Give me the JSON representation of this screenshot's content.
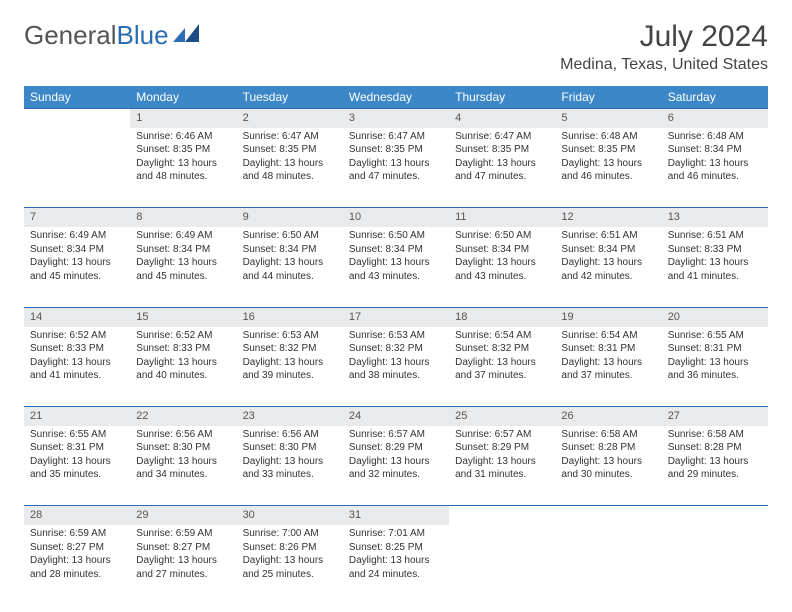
{
  "logo": {
    "part1": "General",
    "part2": "Blue"
  },
  "title": "July 2024",
  "location": "Medina, Texas, United States",
  "colors": {
    "header_bg": "#3b87c8",
    "header_text": "#ffffff",
    "daynum_bg": "#e9eaec",
    "rule": "#2a6db5",
    "text": "#333333",
    "logo_gray": "#555555",
    "logo_blue": "#2a6db5",
    "page_bg": "#ffffff"
  },
  "typography": {
    "title_fontsize": 30,
    "location_fontsize": 16,
    "dayheader_fontsize": 12,
    "daynum_fontsize": 11,
    "body_fontsize": 10
  },
  "day_headers": [
    "Sunday",
    "Monday",
    "Tuesday",
    "Wednesday",
    "Thursday",
    "Friday",
    "Saturday"
  ],
  "weeks": [
    {
      "days": [
        {
          "num": "",
          "lines": []
        },
        {
          "num": "1",
          "lines": [
            "Sunrise: 6:46 AM",
            "Sunset: 8:35 PM",
            "Daylight: 13 hours",
            "and 48 minutes."
          ]
        },
        {
          "num": "2",
          "lines": [
            "Sunrise: 6:47 AM",
            "Sunset: 8:35 PM",
            "Daylight: 13 hours",
            "and 48 minutes."
          ]
        },
        {
          "num": "3",
          "lines": [
            "Sunrise: 6:47 AM",
            "Sunset: 8:35 PM",
            "Daylight: 13 hours",
            "and 47 minutes."
          ]
        },
        {
          "num": "4",
          "lines": [
            "Sunrise: 6:47 AM",
            "Sunset: 8:35 PM",
            "Daylight: 13 hours",
            "and 47 minutes."
          ]
        },
        {
          "num": "5",
          "lines": [
            "Sunrise: 6:48 AM",
            "Sunset: 8:35 PM",
            "Daylight: 13 hours",
            "and 46 minutes."
          ]
        },
        {
          "num": "6",
          "lines": [
            "Sunrise: 6:48 AM",
            "Sunset: 8:34 PM",
            "Daylight: 13 hours",
            "and 46 minutes."
          ]
        }
      ]
    },
    {
      "days": [
        {
          "num": "7",
          "lines": [
            "Sunrise: 6:49 AM",
            "Sunset: 8:34 PM",
            "Daylight: 13 hours",
            "and 45 minutes."
          ]
        },
        {
          "num": "8",
          "lines": [
            "Sunrise: 6:49 AM",
            "Sunset: 8:34 PM",
            "Daylight: 13 hours",
            "and 45 minutes."
          ]
        },
        {
          "num": "9",
          "lines": [
            "Sunrise: 6:50 AM",
            "Sunset: 8:34 PM",
            "Daylight: 13 hours",
            "and 44 minutes."
          ]
        },
        {
          "num": "10",
          "lines": [
            "Sunrise: 6:50 AM",
            "Sunset: 8:34 PM",
            "Daylight: 13 hours",
            "and 43 minutes."
          ]
        },
        {
          "num": "11",
          "lines": [
            "Sunrise: 6:50 AM",
            "Sunset: 8:34 PM",
            "Daylight: 13 hours",
            "and 43 minutes."
          ]
        },
        {
          "num": "12",
          "lines": [
            "Sunrise: 6:51 AM",
            "Sunset: 8:34 PM",
            "Daylight: 13 hours",
            "and 42 minutes."
          ]
        },
        {
          "num": "13",
          "lines": [
            "Sunrise: 6:51 AM",
            "Sunset: 8:33 PM",
            "Daylight: 13 hours",
            "and 41 minutes."
          ]
        }
      ]
    },
    {
      "days": [
        {
          "num": "14",
          "lines": [
            "Sunrise: 6:52 AM",
            "Sunset: 8:33 PM",
            "Daylight: 13 hours",
            "and 41 minutes."
          ]
        },
        {
          "num": "15",
          "lines": [
            "Sunrise: 6:52 AM",
            "Sunset: 8:33 PM",
            "Daylight: 13 hours",
            "and 40 minutes."
          ]
        },
        {
          "num": "16",
          "lines": [
            "Sunrise: 6:53 AM",
            "Sunset: 8:32 PM",
            "Daylight: 13 hours",
            "and 39 minutes."
          ]
        },
        {
          "num": "17",
          "lines": [
            "Sunrise: 6:53 AM",
            "Sunset: 8:32 PM",
            "Daylight: 13 hours",
            "and 38 minutes."
          ]
        },
        {
          "num": "18",
          "lines": [
            "Sunrise: 6:54 AM",
            "Sunset: 8:32 PM",
            "Daylight: 13 hours",
            "and 37 minutes."
          ]
        },
        {
          "num": "19",
          "lines": [
            "Sunrise: 6:54 AM",
            "Sunset: 8:31 PM",
            "Daylight: 13 hours",
            "and 37 minutes."
          ]
        },
        {
          "num": "20",
          "lines": [
            "Sunrise: 6:55 AM",
            "Sunset: 8:31 PM",
            "Daylight: 13 hours",
            "and 36 minutes."
          ]
        }
      ]
    },
    {
      "days": [
        {
          "num": "21",
          "lines": [
            "Sunrise: 6:55 AM",
            "Sunset: 8:31 PM",
            "Daylight: 13 hours",
            "and 35 minutes."
          ]
        },
        {
          "num": "22",
          "lines": [
            "Sunrise: 6:56 AM",
            "Sunset: 8:30 PM",
            "Daylight: 13 hours",
            "and 34 minutes."
          ]
        },
        {
          "num": "23",
          "lines": [
            "Sunrise: 6:56 AM",
            "Sunset: 8:30 PM",
            "Daylight: 13 hours",
            "and 33 minutes."
          ]
        },
        {
          "num": "24",
          "lines": [
            "Sunrise: 6:57 AM",
            "Sunset: 8:29 PM",
            "Daylight: 13 hours",
            "and 32 minutes."
          ]
        },
        {
          "num": "25",
          "lines": [
            "Sunrise: 6:57 AM",
            "Sunset: 8:29 PM",
            "Daylight: 13 hours",
            "and 31 minutes."
          ]
        },
        {
          "num": "26",
          "lines": [
            "Sunrise: 6:58 AM",
            "Sunset: 8:28 PM",
            "Daylight: 13 hours",
            "and 30 minutes."
          ]
        },
        {
          "num": "27",
          "lines": [
            "Sunrise: 6:58 AM",
            "Sunset: 8:28 PM",
            "Daylight: 13 hours",
            "and 29 minutes."
          ]
        }
      ]
    },
    {
      "days": [
        {
          "num": "28",
          "lines": [
            "Sunrise: 6:59 AM",
            "Sunset: 8:27 PM",
            "Daylight: 13 hours",
            "and 28 minutes."
          ]
        },
        {
          "num": "29",
          "lines": [
            "Sunrise: 6:59 AM",
            "Sunset: 8:27 PM",
            "Daylight: 13 hours",
            "and 27 minutes."
          ]
        },
        {
          "num": "30",
          "lines": [
            "Sunrise: 7:00 AM",
            "Sunset: 8:26 PM",
            "Daylight: 13 hours",
            "and 25 minutes."
          ]
        },
        {
          "num": "31",
          "lines": [
            "Sunrise: 7:01 AM",
            "Sunset: 8:25 PM",
            "Daylight: 13 hours",
            "and 24 minutes."
          ]
        },
        {
          "num": "",
          "lines": []
        },
        {
          "num": "",
          "lines": []
        },
        {
          "num": "",
          "lines": []
        }
      ]
    }
  ]
}
